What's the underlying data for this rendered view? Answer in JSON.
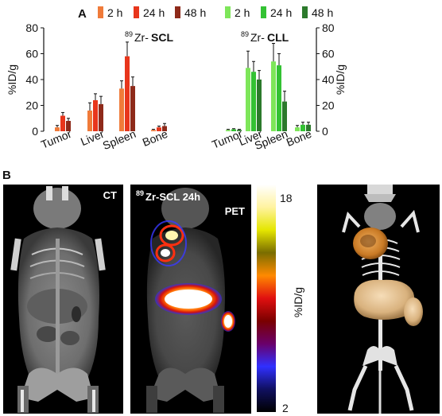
{
  "panels": {
    "a_label": "A",
    "b_label": "B"
  },
  "legend": {
    "scl": [
      {
        "label": "2 h",
        "color": "#f07b3a"
      },
      {
        "label": "24 h",
        "color": "#e8361c"
      },
      {
        "label": "48 h",
        "color": "#8e2a1a"
      }
    ],
    "cll": [
      {
        "label": "2 h",
        "color": "#7ee65a"
      },
      {
        "label": "24 h",
        "color": "#33c233"
      },
      {
        "label": "48 h",
        "color": "#2c7a2c"
      }
    ]
  },
  "chart_data": [
    {
      "type": "bar",
      "title_sup": "89",
      "title_prefix": "Zr-",
      "title_main": "SCL",
      "ylabel": "%ID/g",
      "ylim": [
        0,
        80
      ],
      "yticks": [
        "0",
        "20",
        "40",
        "60",
        "80"
      ],
      "categories": [
        "Tumor",
        "Liver",
        "Spleen",
        "Bone"
      ],
      "series": [
        {
          "name": "2 h",
          "values": [
            3,
            16,
            33,
            1
          ],
          "errors": [
            1.5,
            6,
            6,
            0.5
          ],
          "color": "#f07b3a"
        },
        {
          "name": "24 h",
          "values": [
            12,
            24,
            58,
            3
          ],
          "errors": [
            2.5,
            5,
            11,
            1
          ],
          "color": "#e8361c"
        },
        {
          "name": "48 h",
          "values": [
            8,
            21,
            35,
            4
          ],
          "errors": [
            2,
            6,
            7,
            2
          ],
          "color": "#8e2a1a"
        }
      ]
    },
    {
      "type": "bar",
      "title_sup": "89",
      "title_prefix": "Zr-",
      "title_main": "CLL",
      "ylabel": "%ID/g",
      "ylim": [
        0,
        80
      ],
      "yticks": [
        "0",
        "20",
        "40",
        "60",
        "80"
      ],
      "categories": [
        "Tumor",
        "Liver",
        "Spleen",
        "Bone"
      ],
      "series": [
        {
          "name": "2 h",
          "values": [
            1,
            49,
            54,
            3
          ],
          "errors": [
            0.5,
            13,
            14,
            1.5
          ],
          "color": "#7ee65a"
        },
        {
          "name": "24 h",
          "values": [
            1.5,
            46,
            51,
            5
          ],
          "errors": [
            0.5,
            8,
            9,
            2
          ],
          "color": "#33c233"
        },
        {
          "name": "48 h",
          "values": [
            1,
            40,
            23,
            5
          ],
          "errors": [
            0.5,
            7,
            8,
            2
          ],
          "color": "#2c7a2c"
        }
      ]
    }
  ],
  "images": {
    "ct_label": "CT",
    "pet_label_sup": "89",
    "pet_label_line1": "Zr-SCL 24h",
    "pet_label_line2": "PET",
    "colorbar_max": "18",
    "colorbar_min": "2",
    "colorbar_label": "%ID/g",
    "colorbar_stops": [
      "#ffffff",
      "#fff3a0",
      "#e5e600",
      "#7a6d00",
      "#ff8a00",
      "#e01010",
      "#7a0000",
      "#6a006a",
      "#3030ff",
      "#101060",
      "#000000"
    ]
  }
}
